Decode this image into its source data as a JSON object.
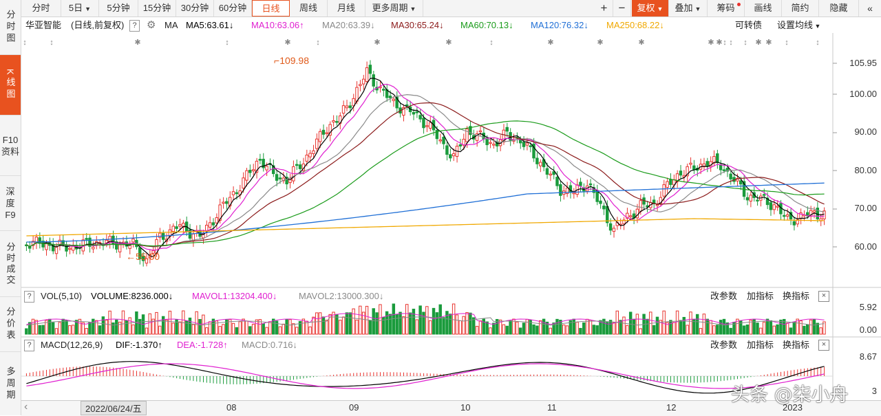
{
  "sidebar": {
    "items": [
      {
        "label": "分时图",
        "active": false
      },
      {
        "label": "K线图",
        "active": true
      },
      {
        "label": "F10资料",
        "active": false
      },
      {
        "label": "深度F9",
        "active": false
      },
      {
        "label": "分时成交",
        "active": false
      },
      {
        "label": "分价表",
        "active": false
      },
      {
        "label": "多周期",
        "active": false
      }
    ]
  },
  "toolbar": {
    "periods": [
      "分时",
      "5日",
      "5分钟",
      "15分钟",
      "30分钟",
      "60分钟",
      "日线",
      "周线",
      "月线",
      "更多周期"
    ],
    "active_period": "日线",
    "zoom_in": "+",
    "zoom_out": "−",
    "fuquan": "复权",
    "overlay": "叠加",
    "chips": "筹码",
    "draw_line": "画线",
    "simple": "简约",
    "hide": "隐藏"
  },
  "ma_header": {
    "stock_name": "华亚智能",
    "mode": "(日线,前复权)",
    "help": "?",
    "ma_label": "MA",
    "ma5": "MA5:63.61",
    "ma10": "MA10:63.06",
    "ma20": "MA20:63.39",
    "ma30": "MA30:65.24",
    "ma60": "MA60:70.13",
    "ma120": "MA120:76.32",
    "ma250": "MA250:68.22",
    "convertible": "可转债",
    "set_ma": "设置均线"
  },
  "price_axis": [
    "105.95",
    "100.00",
    "90.00",
    "80.00",
    "70.00",
    "60.00"
  ],
  "annotations": {
    "high": "109.98",
    "low": "55.00"
  },
  "volume_panel": {
    "help": "?",
    "title": "VOL(5,10)",
    "volume": "VOLUME:8236.000",
    "mavol1": "MAVOL1:13204.400",
    "mavol2": "MAVOL2:13000.300",
    "change_params": "改参数",
    "add_indicator": "加指标",
    "swap_indicator": "换指标",
    "close": "×",
    "axis_top": "5.92",
    "axis_bottom": "0.00"
  },
  "macd_panel": {
    "help": "?",
    "title": "MACD(12,26,9)",
    "dif": "DIF:-1.370",
    "dea": "DEA:-1.728",
    "macd": "MACD:0.716",
    "change_params": "改参数",
    "add_indicator": "加指标",
    "swap_indicator": "换指标",
    "close": "×",
    "axis_top": "8.67",
    "axis_bottom": "3"
  },
  "date_axis": {
    "scroll_left": "‹",
    "cursor_date": "2022/06/24/五",
    "months": [
      "08",
      "09",
      "10",
      "11",
      "12",
      "2023"
    ]
  },
  "watermark": "头条 @柒小舟",
  "colors": {
    "up": "#e8332e",
    "down": "#1a9b3c",
    "accent": "#e8521f",
    "ma5": "#000000",
    "ma10": "#e020d0",
    "ma20": "#8a8a8a",
    "ma30": "#8b1a1a",
    "ma60": "#1a9b1a",
    "ma120": "#1f6fd6",
    "ma250": "#f0a800"
  }
}
